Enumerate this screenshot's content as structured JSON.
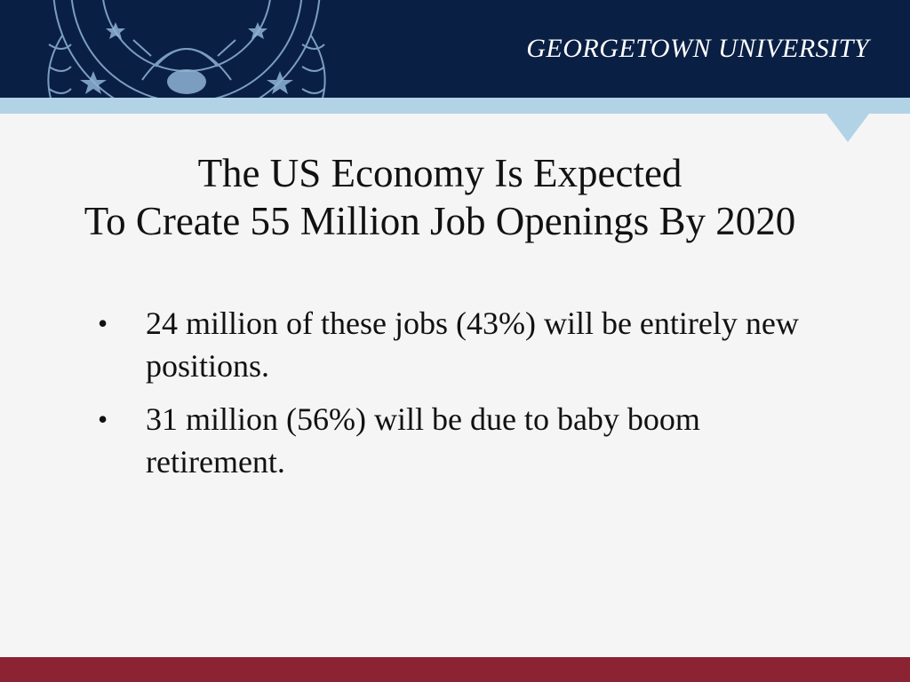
{
  "header": {
    "brand": "GEORGETOWN UNIVERSITY",
    "seal_icon": "university-seal-icon",
    "background_color": "#0a1f44",
    "band_color": "#b2d3e6"
  },
  "slide": {
    "title_lines": [
      "The US Economy Is Expected",
      "To Create 55 Million Job Openings By 2020"
    ],
    "bullets": [
      "24 million of these jobs (43%) will be entirely new positions.",
      "31 million (56%) will be due to baby boom retirement."
    ],
    "bullet_symbol": "•"
  },
  "footer": {
    "color": "#8b2332"
  }
}
